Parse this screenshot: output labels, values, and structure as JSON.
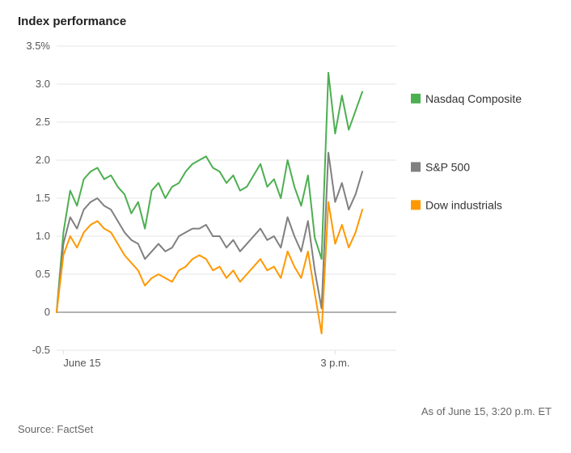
{
  "title": "Index performance",
  "source_label": "Source: FactSet",
  "asof_label": "As of June 15, 3:20 p.m. ET",
  "chart": {
    "type": "line",
    "background_color": "#ffffff",
    "grid_color": "#e5e5e5",
    "zero_line_color": "#999999",
    "text_color": "#555555",
    "ylim": [
      -0.5,
      3.5
    ],
    "yticks": [
      -0.5,
      0,
      0.5,
      1.0,
      1.5,
      2.0,
      2.5,
      3.0,
      3.5
    ],
    "ytick_labels": [
      "-0.5",
      "0",
      "0.5",
      "1.0",
      "1.5",
      "2.0",
      "2.5",
      "3.0",
      "3.5%"
    ],
    "xlim": [
      0,
      100
    ],
    "xticks": [
      2,
      82
    ],
    "xtick_labels": [
      "June 15",
      "3 p.m."
    ],
    "legend": [
      {
        "label": "Nasdaq Composite",
        "color": "#4caf50"
      },
      {
        "label": "S&P 500",
        "color": "#808080"
      },
      {
        "label": "Dow industrials",
        "color": "#ff9800"
      }
    ],
    "series": [
      {
        "name": "Nasdaq Composite",
        "color": "#4caf50",
        "x": [
          0,
          2,
          4,
          6,
          8,
          10,
          12,
          14,
          16,
          18,
          20,
          22,
          24,
          26,
          28,
          30,
          32,
          34,
          36,
          38,
          40,
          42,
          44,
          46,
          48,
          50,
          52,
          54,
          56,
          58,
          60,
          62,
          64,
          66,
          68,
          70,
          72,
          74,
          76,
          78,
          80,
          82,
          84,
          86,
          88,
          90
        ],
        "y": [
          0.0,
          1.05,
          1.6,
          1.4,
          1.75,
          1.85,
          1.9,
          1.75,
          1.8,
          1.65,
          1.55,
          1.3,
          1.45,
          1.1,
          1.6,
          1.7,
          1.5,
          1.65,
          1.7,
          1.85,
          1.95,
          2.0,
          2.05,
          1.9,
          1.85,
          1.7,
          1.8,
          1.6,
          1.65,
          1.8,
          1.95,
          1.65,
          1.75,
          1.5,
          2.0,
          1.65,
          1.4,
          1.8,
          0.98,
          0.7,
          3.15,
          2.35,
          2.85,
          2.4,
          2.65,
          2.9
        ]
      },
      {
        "name": "S&P 500",
        "color": "#808080",
        "x": [
          0,
          2,
          4,
          6,
          8,
          10,
          12,
          14,
          16,
          18,
          20,
          22,
          24,
          26,
          28,
          30,
          32,
          34,
          36,
          38,
          40,
          42,
          44,
          46,
          48,
          50,
          52,
          54,
          56,
          58,
          60,
          62,
          64,
          66,
          68,
          70,
          72,
          74,
          76,
          78,
          80,
          82,
          84,
          86,
          88,
          90
        ],
        "y": [
          0.0,
          0.9,
          1.25,
          1.1,
          1.35,
          1.45,
          1.5,
          1.4,
          1.35,
          1.2,
          1.05,
          0.95,
          0.9,
          0.7,
          0.8,
          0.9,
          0.8,
          0.85,
          1.0,
          1.05,
          1.1,
          1.1,
          1.15,
          1.0,
          1.0,
          0.85,
          0.95,
          0.8,
          0.9,
          1.0,
          1.1,
          0.95,
          1.0,
          0.85,
          1.25,
          1.0,
          0.8,
          1.2,
          0.55,
          0.05,
          2.1,
          1.45,
          1.7,
          1.35,
          1.55,
          1.85
        ]
      },
      {
        "name": "Dow industrials",
        "color": "#ff9800",
        "x": [
          0,
          2,
          4,
          6,
          8,
          10,
          12,
          14,
          16,
          18,
          20,
          22,
          24,
          26,
          28,
          30,
          32,
          34,
          36,
          38,
          40,
          42,
          44,
          46,
          48,
          50,
          52,
          54,
          56,
          58,
          60,
          62,
          64,
          66,
          68,
          70,
          72,
          74,
          76,
          78,
          80,
          82,
          84,
          86,
          88,
          90
        ],
        "y": [
          0.0,
          0.75,
          1.0,
          0.85,
          1.05,
          1.15,
          1.2,
          1.1,
          1.05,
          0.9,
          0.75,
          0.65,
          0.55,
          0.35,
          0.45,
          0.5,
          0.45,
          0.4,
          0.55,
          0.6,
          0.7,
          0.75,
          0.7,
          0.55,
          0.6,
          0.45,
          0.55,
          0.4,
          0.5,
          0.6,
          0.7,
          0.55,
          0.6,
          0.45,
          0.8,
          0.6,
          0.45,
          0.8,
          0.25,
          -0.28,
          1.45,
          0.9,
          1.15,
          0.85,
          1.05,
          1.35
        ]
      }
    ]
  }
}
